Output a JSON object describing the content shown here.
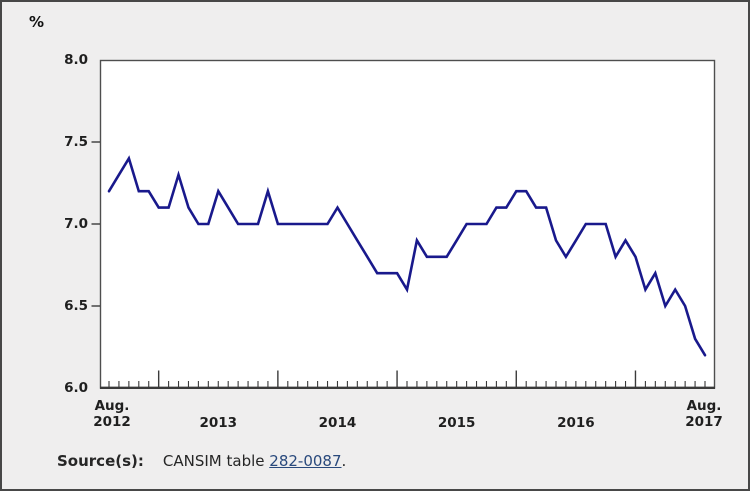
{
  "page": {
    "background_color": "#efeeee",
    "border_color": "#474747",
    "unit_label": "%"
  },
  "axes": {
    "y_tick_labels": [
      "8.0",
      "7.5",
      "7.0",
      "6.5",
      "6.0"
    ],
    "x_start_label": [
      "Aug.",
      "2012"
    ],
    "x_year_labels": [
      "2013",
      "2014",
      "2015",
      "2016"
    ],
    "x_end_label": [
      "Aug.",
      "2017"
    ]
  },
  "footer": {
    "source_label": "Source(s):",
    "source_text": "CANSIM table",
    "link_text": "282-0087",
    "after_link": "."
  },
  "chart_data": {
    "type": "line",
    "title": "",
    "ylabel": "%",
    "ylim": [
      6.0,
      8.0
    ],
    "y_ticks": [
      8.0,
      7.5,
      7.0,
      6.5,
      6.0
    ],
    "x_range": "Aug 2012 to Aug 2017, monthly",
    "grid": false,
    "legend": "none",
    "line_color": "#19198c",
    "months": [
      "Aug 2012",
      "Sep 2012",
      "Oct 2012",
      "Nov 2012",
      "Dec 2012",
      "Jan 2013",
      "Feb 2013",
      "Mar 2013",
      "Apr 2013",
      "May 2013",
      "Jun 2013",
      "Jul 2013",
      "Aug 2013",
      "Sep 2013",
      "Oct 2013",
      "Nov 2013",
      "Dec 2013",
      "Jan 2014",
      "Feb 2014",
      "Mar 2014",
      "Apr 2014",
      "May 2014",
      "Jun 2014",
      "Jul 2014",
      "Aug 2014",
      "Sep 2014",
      "Oct 2014",
      "Nov 2014",
      "Dec 2014",
      "Jan 2015",
      "Feb 2015",
      "Mar 2015",
      "Apr 2015",
      "May 2015",
      "Jun 2015",
      "Jul 2015",
      "Aug 2015",
      "Sep 2015",
      "Oct 2015",
      "Nov 2015",
      "Dec 2015",
      "Jan 2016",
      "Feb 2016",
      "Mar 2016",
      "Apr 2016",
      "May 2016",
      "Jun 2016",
      "Jul 2016",
      "Aug 2016",
      "Sep 2016",
      "Oct 2016",
      "Nov 2016",
      "Dec 2016",
      "Jan 2017",
      "Feb 2017",
      "Mar 2017",
      "Apr 2017",
      "May 2017",
      "Jun 2017",
      "Jul 2017",
      "Aug 2017"
    ],
    "values": [
      7.2,
      7.3,
      7.4,
      7.2,
      7.2,
      7.1,
      7.1,
      7.3,
      7.1,
      7.0,
      7.0,
      7.2,
      7.1,
      7.0,
      7.0,
      7.0,
      7.2,
      7.0,
      7.0,
      7.0,
      7.0,
      7.0,
      7.0,
      7.1,
      7.0,
      6.9,
      6.8,
      6.7,
      6.7,
      6.7,
      6.6,
      6.9,
      6.8,
      6.8,
      6.8,
      6.9,
      7.0,
      7.0,
      7.0,
      7.1,
      7.1,
      7.2,
      7.2,
      7.1,
      7.1,
      6.9,
      6.8,
      6.9,
      7.0,
      7.0,
      7.0,
      6.8,
      6.9,
      6.8,
      6.6,
      6.7,
      6.5,
      6.6,
      6.5,
      6.3,
      6.2
    ]
  }
}
